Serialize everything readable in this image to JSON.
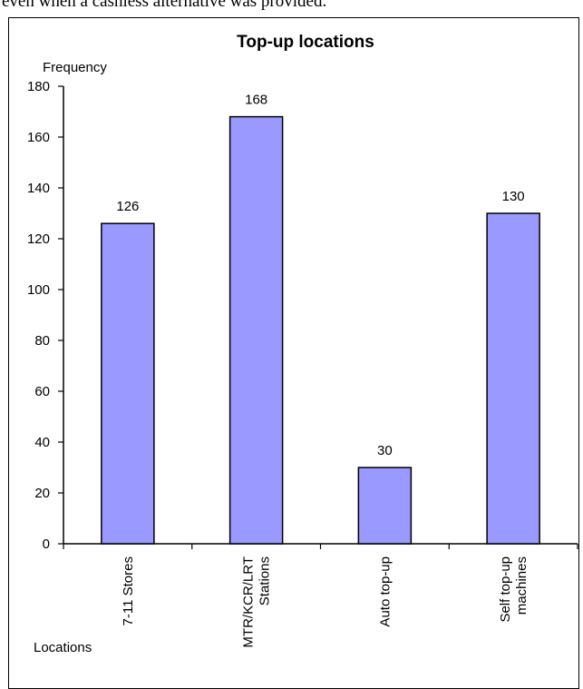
{
  "page": {
    "top_text": "even when a cashless alternative was provided."
  },
  "chart_data": {
    "type": "bar",
    "title": "Top-up locations",
    "xlabel": "Locations",
    "ylabel": "Frequency",
    "categories": [
      "7-11 Stores",
      "MTR/KCR/LRT Stations",
      "Auto top-up",
      "Self top-up machines"
    ],
    "category_lines": [
      [
        "7-11 Stores"
      ],
      [
        "MTR/KCR/LRT",
        "Stations"
      ],
      [
        "Auto top-up"
      ],
      [
        "Self top-up",
        "machines"
      ]
    ],
    "values": [
      126,
      168,
      30,
      130
    ],
    "data_labels": [
      "126",
      "168",
      "30",
      "130"
    ],
    "ylim": [
      0,
      180
    ],
    "yticks": [
      "0",
      "20",
      "40",
      "60",
      "80",
      "100",
      "120",
      "140",
      "160",
      "180"
    ],
    "grid": false,
    "legend": "none",
    "bar_color": "#9999ff",
    "bar_border": "#000000"
  }
}
